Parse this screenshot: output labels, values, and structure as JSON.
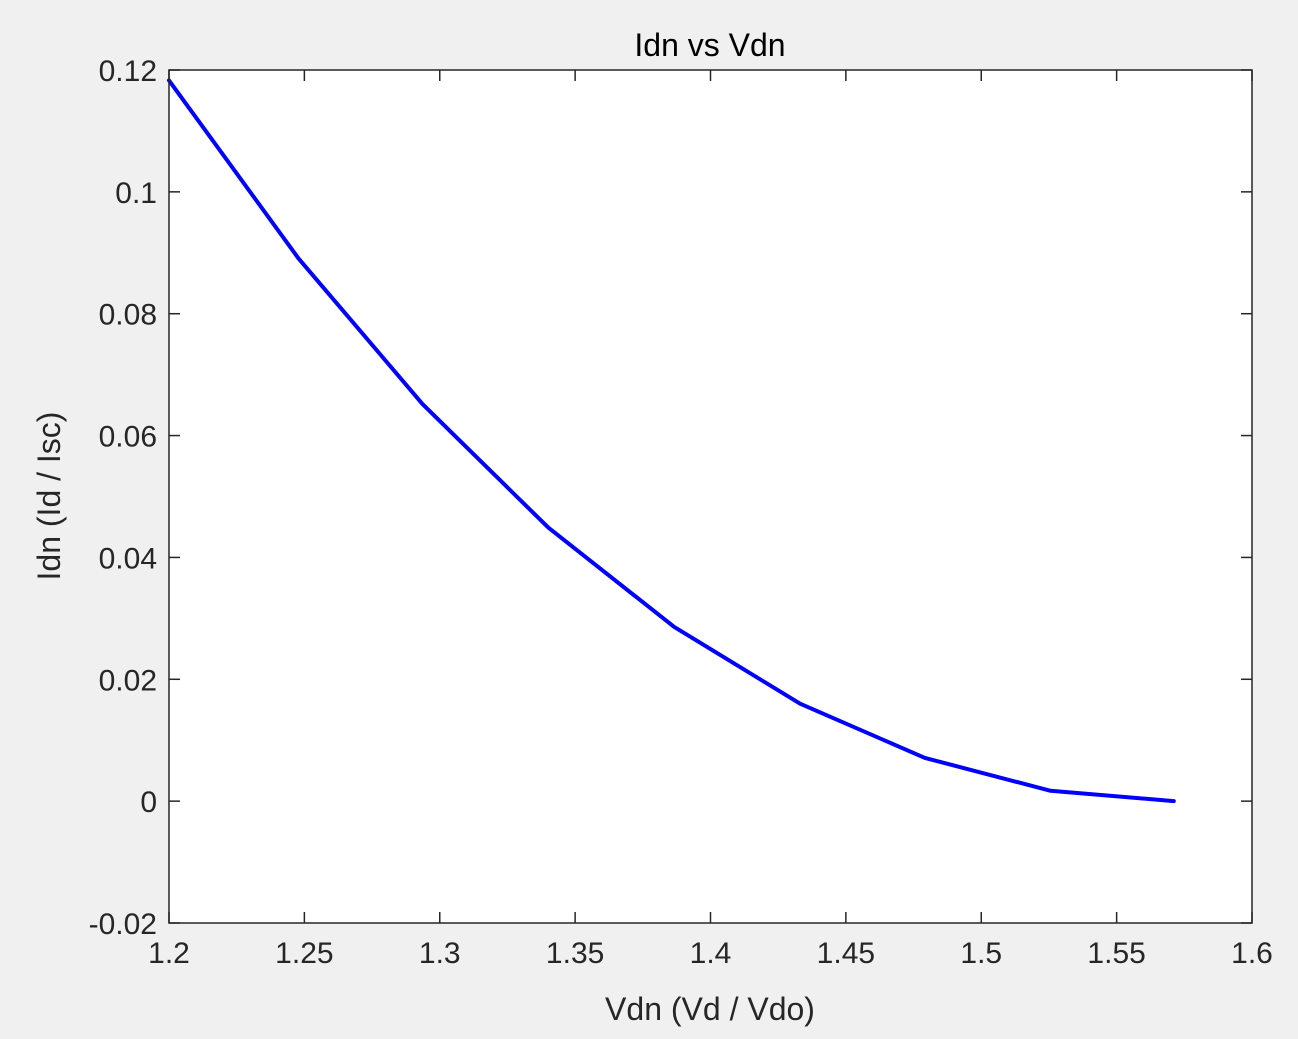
{
  "chart_data": {
    "type": "line",
    "title": "Idn vs Vdn",
    "xlabel": "Vdn (Vd / Vdo)",
    "ylabel": "Idn (Id / Isc)",
    "xlim": [
      1.2,
      1.6
    ],
    "ylim": [
      -0.02,
      0.12
    ],
    "xticks": [
      "1.2",
      "1.25",
      "1.3",
      "1.35",
      "1.4",
      "1.45",
      "1.5",
      "1.55",
      "1.6"
    ],
    "yticks": [
      "-0.02",
      "0",
      "0.02",
      "0.04",
      "0.06",
      "0.08",
      "0.1",
      "0.12"
    ],
    "grid": false,
    "series": [
      {
        "color": "#0000ff",
        "x": [
          1.2,
          1.2478,
          1.2936,
          1.3401,
          1.3866,
          1.4331,
          1.4792,
          1.5256,
          1.5711
        ],
        "y": [
          0.1183,
          0.0891,
          0.0652,
          0.0449,
          0.0286,
          0.016,
          0.0071,
          0.0017,
          0.0
        ]
      }
    ]
  }
}
